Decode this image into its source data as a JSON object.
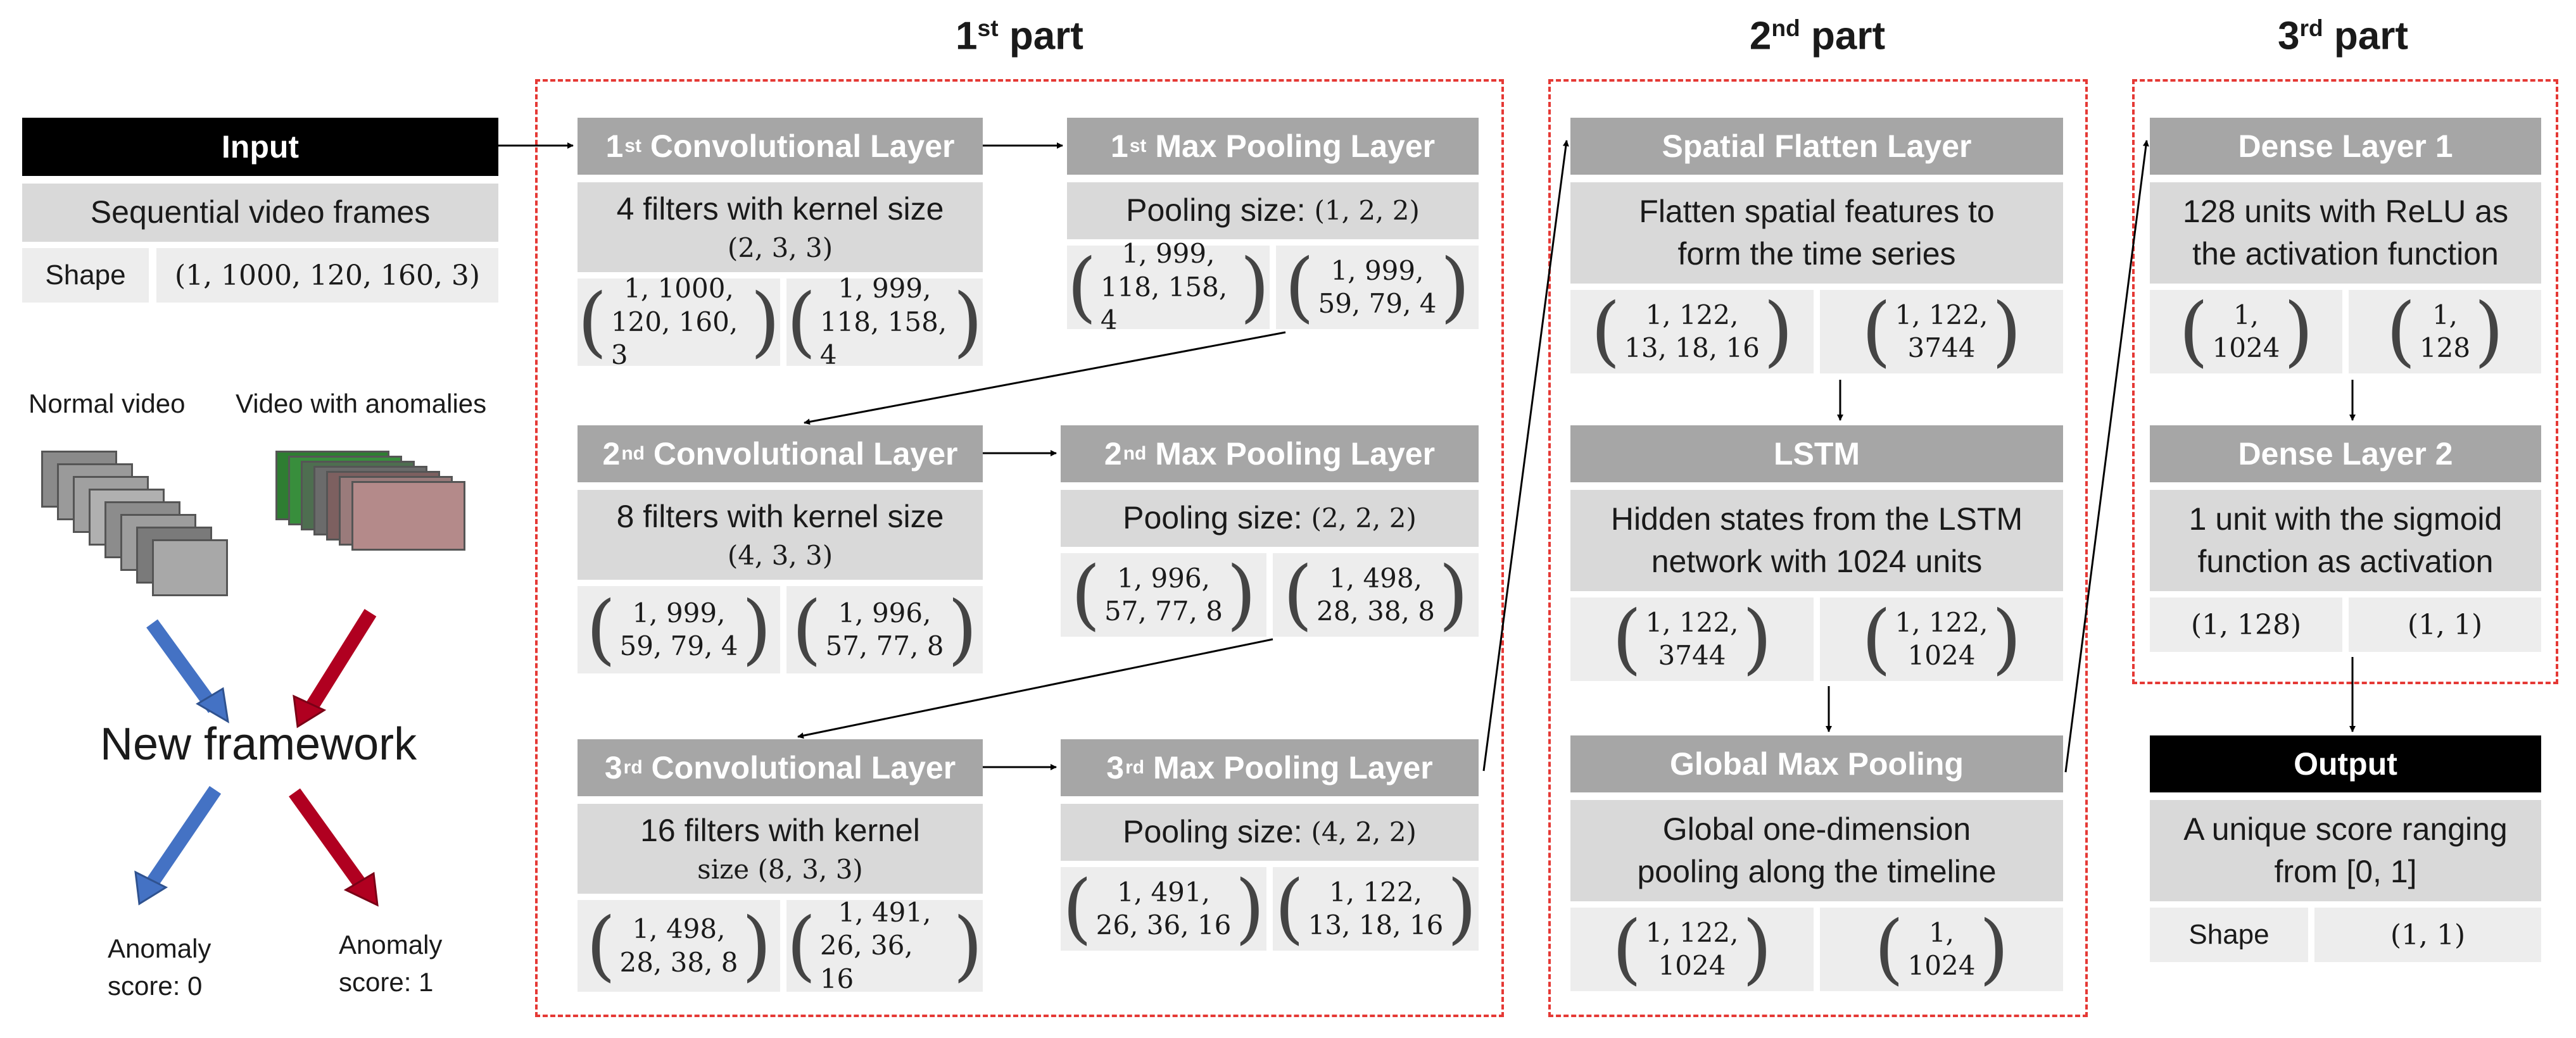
{
  "parts": {
    "part1": {
      "num": "1",
      "sup": "st",
      "word": "part"
    },
    "part2": {
      "num": "2",
      "sup": "nd",
      "word": "part"
    },
    "part3": {
      "num": "3",
      "sup": "rd",
      "word": "part"
    }
  },
  "input": {
    "title": "Input",
    "desc": "Sequential video frames",
    "shape_label": "Shape",
    "shape_value": "(1, 1000, 120, 160, 3)"
  },
  "left": {
    "normal_video": "Normal video",
    "anomaly_video": "Video with anomalies",
    "framework": "New framework",
    "score0": [
      "Anomaly",
      "score: 0"
    ],
    "score1": [
      "Anomaly",
      "score: 1"
    ]
  },
  "conv1": {
    "num": "1",
    "sup": "st",
    "name": "Convolutional Layer",
    "desc_line1": "4 filters with kernel size",
    "desc_line2": "(2, 3, 3)",
    "in": [
      "1, 1000,",
      "120, 160, 3"
    ],
    "out": [
      "1, 999,",
      "118, 158, 4"
    ]
  },
  "pool1": {
    "num": "1",
    "sup": "st",
    "name": "Max Pooling Layer",
    "desc_text": "Pooling size:",
    "desc_size": "(1, 2, 2)",
    "in": [
      "1, 999,",
      "118, 158, 4"
    ],
    "out": [
      "1, 999,",
      "59, 79, 4"
    ]
  },
  "conv2": {
    "num": "2",
    "sup": "nd",
    "name": "Convolutional Layer",
    "desc_line1": "8 filters with kernel size",
    "desc_line2": "(4, 3, 3)",
    "in": [
      "1, 999,",
      "59, 79, 4"
    ],
    "out": [
      "1, 996,",
      "57, 77, 8"
    ]
  },
  "pool2": {
    "num": "2",
    "sup": "nd",
    "name": "Max Pooling Layer",
    "desc_text": "Pooling size:",
    "desc_size": "(2, 2, 2)",
    "in": [
      "1, 996,",
      "57, 77, 8"
    ],
    "out": [
      "1, 498,",
      "28, 38, 8"
    ]
  },
  "conv3": {
    "num": "3",
    "sup": "rd",
    "name": "Convolutional Layer",
    "desc_line1": "16 filters with kernel",
    "desc_line2": "size (8, 3, 3)",
    "in": [
      "1, 498,",
      "28, 38, 8"
    ],
    "out": [
      "1, 491,",
      "26, 36, 16"
    ]
  },
  "pool3": {
    "num": "3",
    "sup": "rd",
    "name": "Max Pooling Layer",
    "desc_text": "Pooling size:",
    "desc_size": "(4, 2, 2)",
    "in": [
      "1, 491,",
      "26, 36, 16"
    ],
    "out": [
      "1, 122,",
      "13, 18, 16"
    ]
  },
  "flatten": {
    "name": "Spatial Flatten Layer",
    "desc_line1": "Flatten spatial features to",
    "desc_line2": "form the time series",
    "in": [
      "1, 122,",
      "13, 18, 16"
    ],
    "out": [
      "1, 122,",
      "3744"
    ]
  },
  "lstm": {
    "name": "LSTM",
    "desc_line1": "Hidden states from the LSTM",
    "desc_line2": "network with 1024 units",
    "in": [
      "1, 122,",
      "3744"
    ],
    "out": [
      "1, 122,",
      "1024"
    ]
  },
  "gmp": {
    "name": "Global Max Pooling",
    "desc_line1": "Global one-dimension",
    "desc_line2": "pooling along the timeline",
    "in": [
      "1, 122,",
      "1024"
    ],
    "out": [
      "1,",
      "1024"
    ]
  },
  "dense1": {
    "name": "Dense Layer 1",
    "desc_line1": "128 units with ReLU as",
    "desc_line2": "the activation function",
    "in": [
      "1,",
      "1024"
    ],
    "out": [
      "1,",
      "128"
    ]
  },
  "dense2": {
    "name": "Dense Layer 2",
    "desc_line1": "1 unit with the sigmoid",
    "desc_line2": "function as activation",
    "in": "(1, 128)",
    "out": "(1, 1)"
  },
  "output": {
    "title": "Output",
    "desc_line1": "A unique score ranging",
    "desc_line2": "from [0, 1]",
    "shape_label": "Shape",
    "shape_value": "(1, 1)"
  },
  "colors": {
    "dashed_border": "#e53935",
    "header_gray": "#a6a6a6",
    "desc_gray": "#d9d9d9",
    "cell_gray": "#ededed",
    "blue_arrow": "#4472c4",
    "red_arrow": "#b00020"
  }
}
